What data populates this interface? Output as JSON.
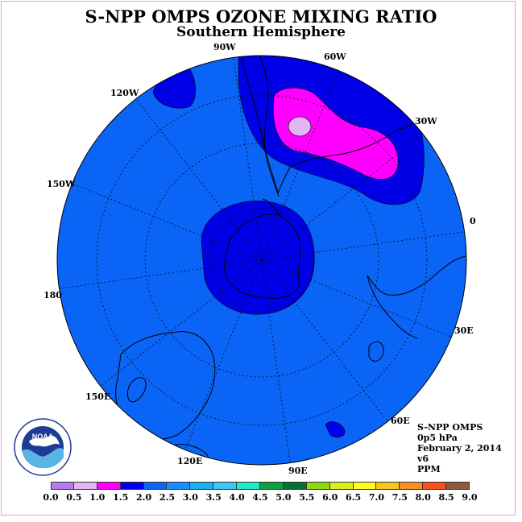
{
  "title": "S-NPP OMPS OZONE MIXING RATIO",
  "subtitle": "Southern Hemisphere",
  "longitude_labels": [
    "90W",
    "60W",
    "30W",
    "0",
    "30E",
    "60E",
    "90E",
    "120E",
    "150E",
    "180",
    "150W",
    "120W"
  ],
  "info": {
    "instrument": "S-NPP OMPS",
    "level": "0p5 hPa",
    "date": "February 2, 2014",
    "version": "v6",
    "units": "PPM"
  },
  "logo_text": "NOAA",
  "colorbar": {
    "ticks": [
      "0.0",
      "0.5",
      "1.0",
      "1.5",
      "2.0",
      "2.5",
      "3.0",
      "3.5",
      "4.0",
      "4.5",
      "5.0",
      "5.5",
      "6.0",
      "6.5",
      "7.0",
      "7.5",
      "8.0",
      "8.5",
      "9.0"
    ],
    "colors": [
      "#b77bf0",
      "#e2b5f5",
      "#ff00ff",
      "#0000e6",
      "#0a64f5",
      "#1a8cff",
      "#1ab0f0",
      "#3cc8f0",
      "#20e8c8",
      "#10a040",
      "#087030",
      "#90d810",
      "#d8f020",
      "#ffff20",
      "#f8c818",
      "#f89020",
      "#f85018",
      "#e80010",
      "#8c5a3c"
    ]
  },
  "map_colors": {
    "background": "#0a64f5",
    "low": "#0000e6",
    "magenta": "#ff00ff",
    "lilac": "#e2b5f5"
  }
}
